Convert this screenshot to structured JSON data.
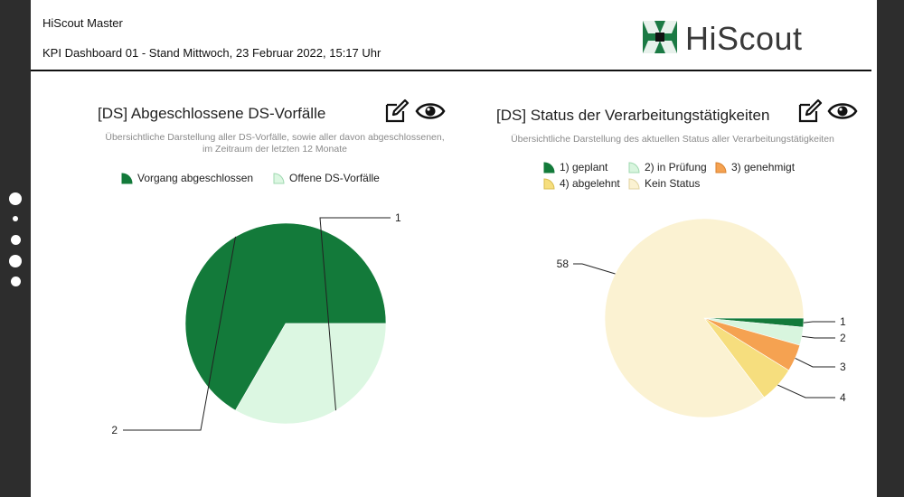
{
  "header": {
    "app_title": "HiScout Master",
    "dashboard_title": "KPI Dashboard 01 - Stand Mittwoch, 23 Februar 2022, 15:17 Uhr",
    "logo_text": "HiScout"
  },
  "icons": {
    "edit": "edit-icon",
    "view": "eye-icon"
  },
  "colors": {
    "geplant": "#137a3a",
    "in_pruefung": "#d8f5de",
    "genehmigt": "#f5a251",
    "abgelehnt": "#f6de7e",
    "kein_status": "#fbf2d2",
    "abgeschlossen": "#137a3a",
    "offen": "#dcf7e2"
  },
  "chart_data": [
    {
      "type": "pie",
      "title": "[DS] Abgeschlossene DS-Vorfälle",
      "subtitle_lines": [
        "Übersichtliche Darstellung aller DS-Vorfälle, sowie aller davon abgeschlossenen,",
        "im Zeitraum der letzten 12 Monate"
      ],
      "legend_placement": "top",
      "slices": [
        {
          "label": "Vorgang abgeschlossen",
          "value": 2,
          "value_label": "2",
          "color": "#137a3a"
        },
        {
          "label": "Offene DS-Vorfälle",
          "value": 1,
          "value_label": "1",
          "color": "#dcf7e2"
        }
      ]
    },
    {
      "type": "pie",
      "title": "[DS] Status der Verarbeitungstätigkeiten",
      "subtitle_lines": [
        "Übersichtliche Darstellung des aktuellen Status aller Verarbeitungstätigkeiten"
      ],
      "legend_placement": "top",
      "slices": [
        {
          "label": "1) geplant",
          "value": 1,
          "value_label": "1",
          "color": "#137a3a"
        },
        {
          "label": "2) in Prüfung",
          "value": 2,
          "value_label": "2",
          "color": "#d8f5de"
        },
        {
          "label": "3) genehmigt",
          "value": 3,
          "value_label": "3",
          "color": "#f5a251"
        },
        {
          "label": "4) abgelehnt",
          "value": 4,
          "value_label": "4",
          "color": "#f6de7e"
        },
        {
          "label": "Kein Status",
          "value": 58,
          "value_label": "58",
          "color": "#fbf2d2"
        }
      ]
    }
  ]
}
